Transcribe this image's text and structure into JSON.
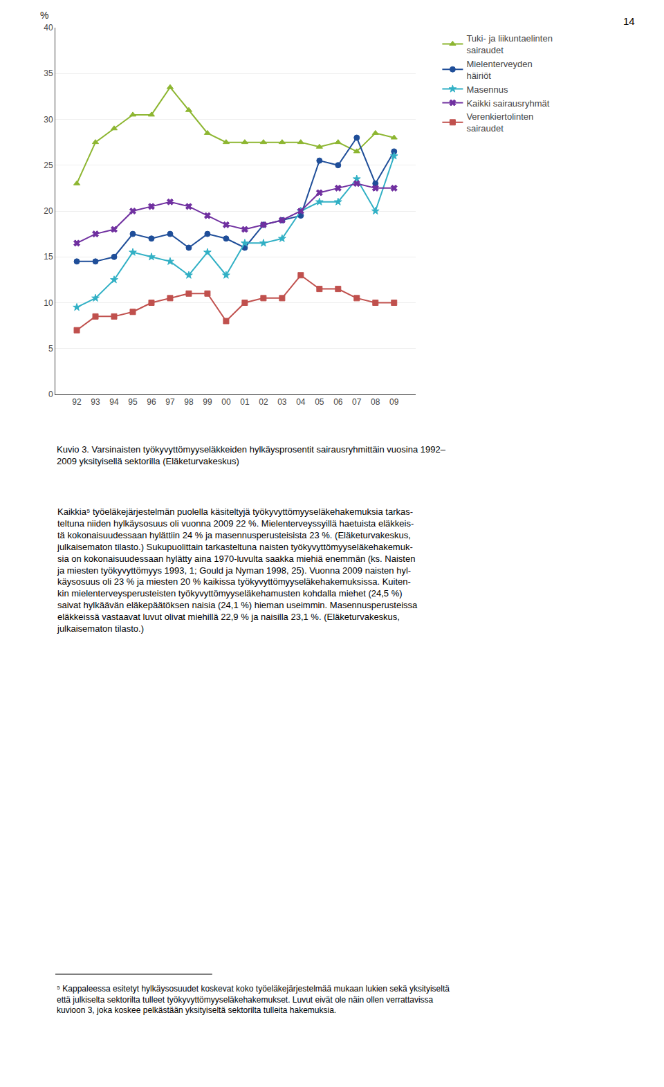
{
  "chart_data": {
    "type": "line",
    "title": "Kuvio 3. Varsinaisten työkyvyttömyyseläkkeiden hylkäysprosentit sairausryhmittäin vuosina 1992–\n2009 yksityisellä sektorilla (Eläketurvakeskus)",
    "y_label": "%",
    "categories": [
      "92",
      "93",
      "94",
      "95",
      "96",
      "97",
      "98",
      "99",
      "00",
      "01",
      "02",
      "03",
      "04",
      "05",
      "06",
      "07",
      "08",
      "09"
    ],
    "series": [
      {
        "name": "Tuki- ja liikuntaelinten\nsairaudet",
        "color": "#8db631",
        "marker": "triangle-up",
        "values": [
          23.0,
          27.5,
          29.0,
          30.5,
          30.5,
          33.5,
          31.0,
          28.5,
          27.5,
          27.5,
          27.5,
          27.5,
          27.5,
          27.0,
          27.5,
          26.5,
          28.5,
          28.0
        ]
      },
      {
        "name": "Mielenterveyden\nhäiriöt",
        "color": "#1f4e99",
        "marker": "circle",
        "values": [
          14.5,
          14.5,
          15.0,
          17.5,
          17.0,
          17.5,
          16.0,
          17.5,
          17.0,
          16.0,
          18.5,
          19.0,
          19.5,
          25.5,
          25.0,
          28.0,
          23.0,
          26.5
        ]
      },
      {
        "name": "Masennus",
        "color": "#31b0c5",
        "marker": "star",
        "values": [
          9.5,
          10.5,
          12.5,
          15.5,
          15.0,
          14.5,
          13.0,
          15.5,
          13.0,
          16.5,
          16.5,
          17.0,
          20.0,
          21.0,
          21.0,
          23.5,
          20.0,
          26.0
        ]
      },
      {
        "name": "Kaikki sairausryhmät",
        "color": "#7030a0",
        "marker": "x",
        "values": [
          16.5,
          17.5,
          18.0,
          20.0,
          20.5,
          21.0,
          20.5,
          19.5,
          18.5,
          18.0,
          18.5,
          19.0,
          20.0,
          22.0,
          22.5,
          23.0,
          22.5,
          22.5
        ]
      },
      {
        "name": "Verenkiertolinten\nsairaudet",
        "color": "#c0504d",
        "marker": "square",
        "values": [
          7.0,
          8.5,
          8.5,
          9.0,
          10.0,
          10.5,
          11.0,
          11.0,
          8.0,
          10.0,
          10.5,
          10.5,
          13.0,
          11.5,
          11.5,
          10.5,
          10.0,
          10.0
        ]
      }
    ],
    "ylim": [
      0,
      40
    ],
    "yticks": [
      0,
      5,
      10,
      15,
      20,
      25,
      30,
      35,
      40
    ],
    "grid": true,
    "legend": "right",
    "annotations": [
      "14",
      "Kaikkia⁵ työeläkejärjestelmän puolella käsiteltyjä työkyvyttömyyseläkehakemuksia tarkas-\nteltuna niiden hylkäysosuus oli vuonna 2009 22 %. Mielenterveyssyillä haetuista eläkkeis-\ntä kokonaisuudessaan hylättiin 24 % ja masennusperusteisista 23 %. (Eläketurvakeskus,\njulkaisematon tilasto.) Sukupuolittain tarkasteltuna naisten työkyvyttömyyseläkehakemuk-\nsia on kokonaisuudessaan hylätty aina 1970-luvulta saakka miehiä enemmän (ks. Naisten\nja miesten työkyvyttömyys 1993, 1; Gould ja Nyman 1998, 25). Vuonna 2009 naisten hyl-\nkäysosuus oli 23 % ja miesten 20 % kaikissa työkyvyttömyyseläkehakemuksissa. Kuiten-\nkin mielenterveysperusteisten työkyvyttömyyseläkehamusten kohdalla miehet (24,5 %)\nsaivat hylkäävän eläkepäätöksen naisia (24,1 %) hieman useimmin. Masennusperusteissa\neläkkeissä vastaavat luvut olivat miehillä 22,9 % ja naisilla 23,1 %. (Eläketurvakeskus,\njulkaisematon tilasto.)",
      "⁵ Kappaleessa esitetyt hylkäysosuudet koskevat koko työeläkejärjestelmää mukaan lukien sekä yksityiseltä\nettä julkiselta sektorilta tulleet työkyvyttömyyseläkehakemukset. Luvut eivät ole näin ollen verrattavissa\nkuvioon 3, joka koskee pelkästään yksityiseltä sektorilta tulleita hakemuksia."
    ]
  }
}
